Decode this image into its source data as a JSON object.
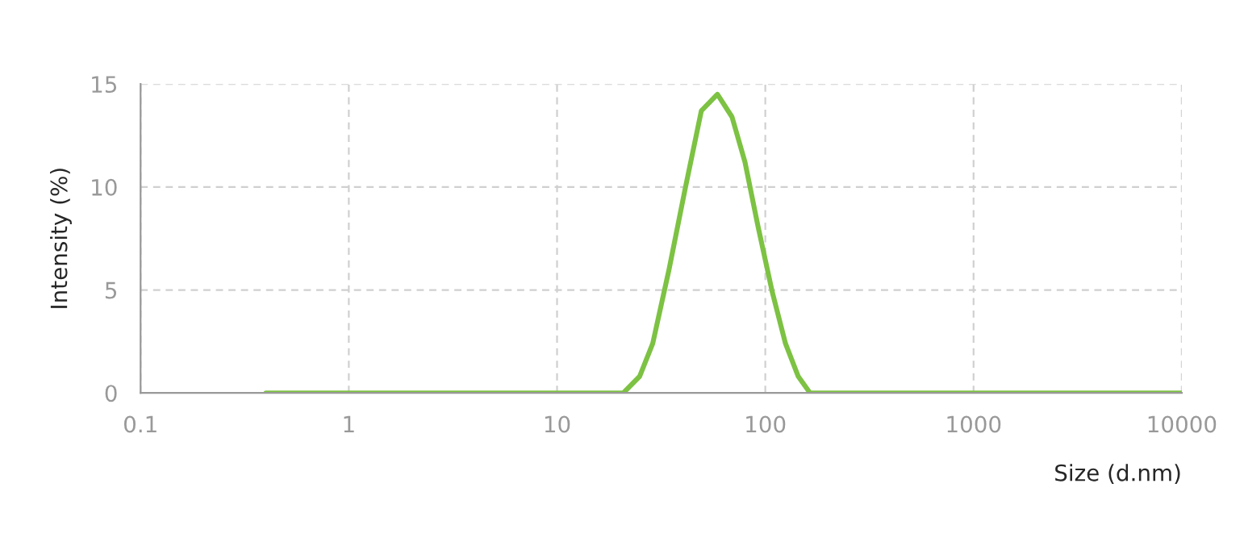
{
  "chart_data": {
    "type": "line",
    "xlabel": "Size (d.nm)",
    "ylabel": "Intensity (%)",
    "log": "x",
    "grid": true,
    "line_style": "solid",
    "marker": "none",
    "xlim": [
      0.1,
      10000
    ],
    "xticks": [
      0.1,
      1,
      10,
      100,
      1000,
      10000
    ],
    "ylim": [
      0,
      15
    ],
    "yticks": [
      0,
      5,
      10,
      15
    ],
    "series": [
      {
        "color": "#7dc243",
        "x": [
          0.4,
          1,
          5,
          10,
          20.8,
          24.9,
          28.8,
          34.5,
          41.2,
          49.3,
          58.9,
          69.2,
          79.9,
          92.2,
          108,
          125,
          144,
          164,
          200,
          1000,
          5000,
          10000
        ],
        "values": [
          0,
          0,
          0,
          0,
          0,
          0.8,
          2.4,
          6.0,
          9.9,
          13.7,
          14.5,
          13.4,
          11.2,
          8.1,
          4.9,
          2.4,
          0.8,
          0,
          0,
          0,
          0,
          0
        ]
      }
    ]
  }
}
